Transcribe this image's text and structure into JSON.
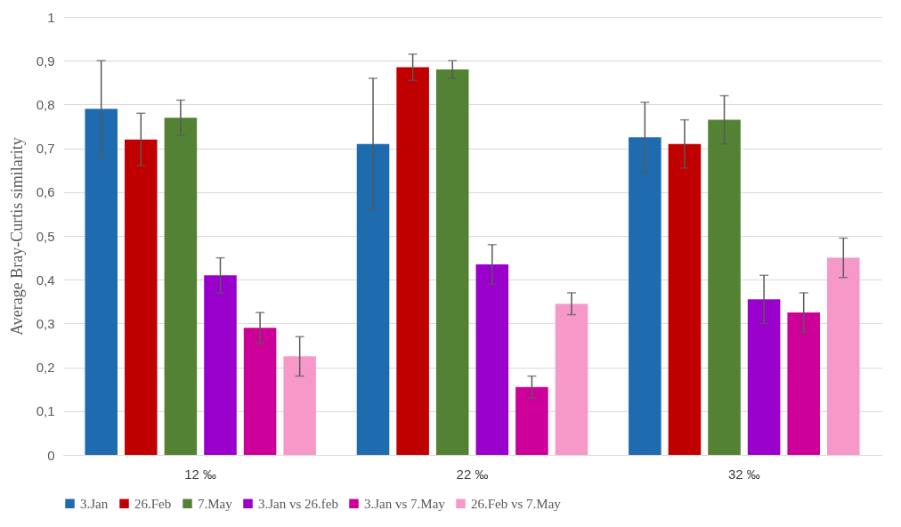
{
  "chart_data": {
    "type": "bar",
    "ylabel": "Average Bray-Curtis similarity",
    "categories": [
      "12 ‰",
      "22 ‰",
      "32 ‰"
    ],
    "series": [
      {
        "name": "3.Jan",
        "color": "#1f6bb0",
        "values": [
          0.79,
          0.71,
          0.725
        ],
        "errors": [
          0.11,
          0.15,
          0.08
        ]
      },
      {
        "name": "26.Feb",
        "color": "#c00000",
        "values": [
          0.72,
          0.885,
          0.71
        ],
        "errors": [
          0.06,
          0.03,
          0.055
        ]
      },
      {
        "name": "7.May",
        "color": "#548235",
        "values": [
          0.77,
          0.88,
          0.765
        ],
        "errors": [
          0.04,
          0.02,
          0.055
        ]
      },
      {
        "name": "3.Jan vs 26.feb",
        "color": "#9900cc",
        "values": [
          0.41,
          0.435,
          0.355
        ],
        "errors": [
          0.04,
          0.045,
          0.055
        ]
      },
      {
        "name": "3.Jan vs 7.May",
        "color": "#cc0099",
        "values": [
          0.29,
          0.155,
          0.325
        ],
        "errors": [
          0.035,
          0.025,
          0.045
        ]
      },
      {
        "name": "26.Feb vs 7.May",
        "color": "#f799c8",
        "values": [
          0.225,
          0.345,
          0.45
        ],
        "errors": [
          0.045,
          0.025,
          0.045
        ]
      }
    ],
    "ylim": [
      0,
      1
    ],
    "yticks": [
      0,
      {
        "value": 0.1,
        "label": "0,1"
      },
      {
        "value": 0.2,
        "label": "0,2"
      },
      {
        "value": 0.3,
        "label": "0,3"
      },
      {
        "value": 0.4,
        "label": "0,4"
      },
      {
        "value": 0.5,
        "label": "0,5"
      },
      {
        "value": 0.6,
        "label": "0,6"
      },
      {
        "value": 0.7,
        "label": "0,7"
      },
      {
        "value": 0.8,
        "label": "0,8"
      },
      {
        "value": 0.9,
        "label": "0,9"
      },
      1
    ],
    "grid": "y",
    "legend": "bottom"
  }
}
